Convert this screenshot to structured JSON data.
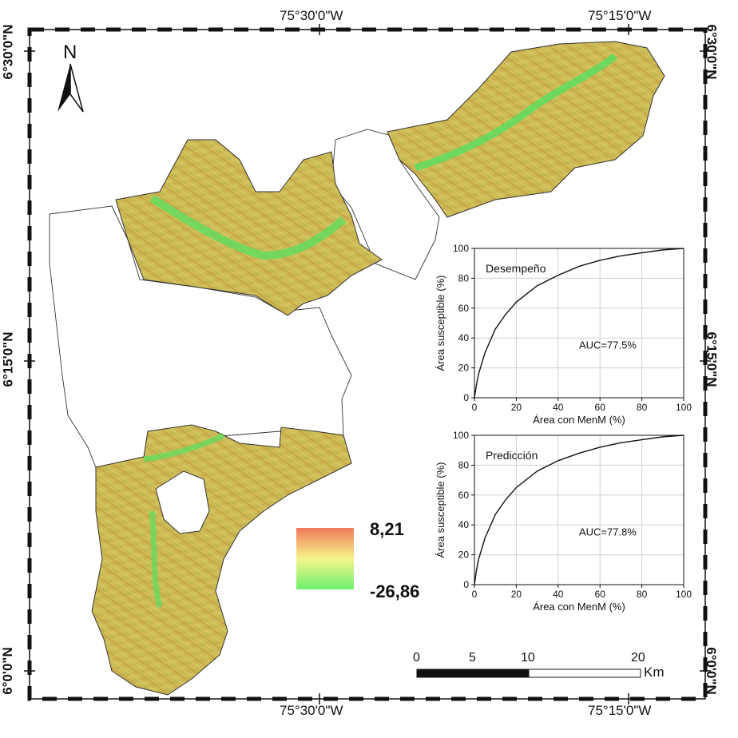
{
  "map": {
    "top_labels": [
      "75°30'0\"W",
      "75°15'0\"W"
    ],
    "bottom_labels": [
      "75°30'0\"W",
      "75°15'0\"W"
    ],
    "left_labels": [
      "6°30'0\"N",
      "6°15'0\"N",
      "6°0'0\"N"
    ],
    "right_labels": [
      "6°30'0\"N",
      "6°15'0\"N",
      "6°0'0\"N"
    ],
    "north_label": "N",
    "legend": {
      "max": "8,21",
      "min": "-26,86",
      "colors": [
        "#f07a5a",
        "#f6f48a",
        "#6ef070"
      ]
    },
    "scale": {
      "ticks": [
        "0",
        "5",
        "10",
        "20"
      ],
      "unit": "Km"
    }
  },
  "chart_data": [
    {
      "type": "line",
      "title": "Desempeño",
      "annotation": "AUC=77.5%",
      "xlabel": "Área con MenM (%)",
      "ylabel": "Área susceptible (%)",
      "xlim": [
        0,
        100
      ],
      "ylim": [
        0,
        100
      ],
      "xticks": [
        "0",
        "20",
        "40",
        "60",
        "80",
        "100"
      ],
      "yticks": [
        "0",
        "20",
        "40",
        "60",
        "80",
        "100"
      ],
      "grid": true,
      "x": [
        0,
        1,
        2,
        5,
        10,
        15,
        20,
        30,
        40,
        50,
        60,
        70,
        80,
        90,
        100
      ],
      "y": [
        0,
        9,
        16,
        30,
        46,
        56,
        64,
        75,
        82,
        88,
        92,
        95,
        97,
        99,
        100
      ]
    },
    {
      "type": "line",
      "title": "Predicción",
      "annotation": "AUC=77.8%",
      "xlabel": "Área con MenM (%)",
      "ylabel": "Área susceptible (%)",
      "xlim": [
        0,
        100
      ],
      "ylim": [
        0,
        100
      ],
      "xticks": [
        "0",
        "20",
        "40",
        "60",
        "80",
        "100"
      ],
      "yticks": [
        "0",
        "20",
        "40",
        "60",
        "80",
        "100"
      ],
      "grid": true,
      "x": [
        0,
        1,
        2,
        5,
        10,
        15,
        20,
        30,
        40,
        50,
        60,
        70,
        80,
        90,
        100
      ],
      "y": [
        0,
        10,
        17,
        31,
        47,
        57,
        65,
        76,
        83,
        88,
        92,
        95,
        97,
        99,
        100
      ]
    }
  ]
}
